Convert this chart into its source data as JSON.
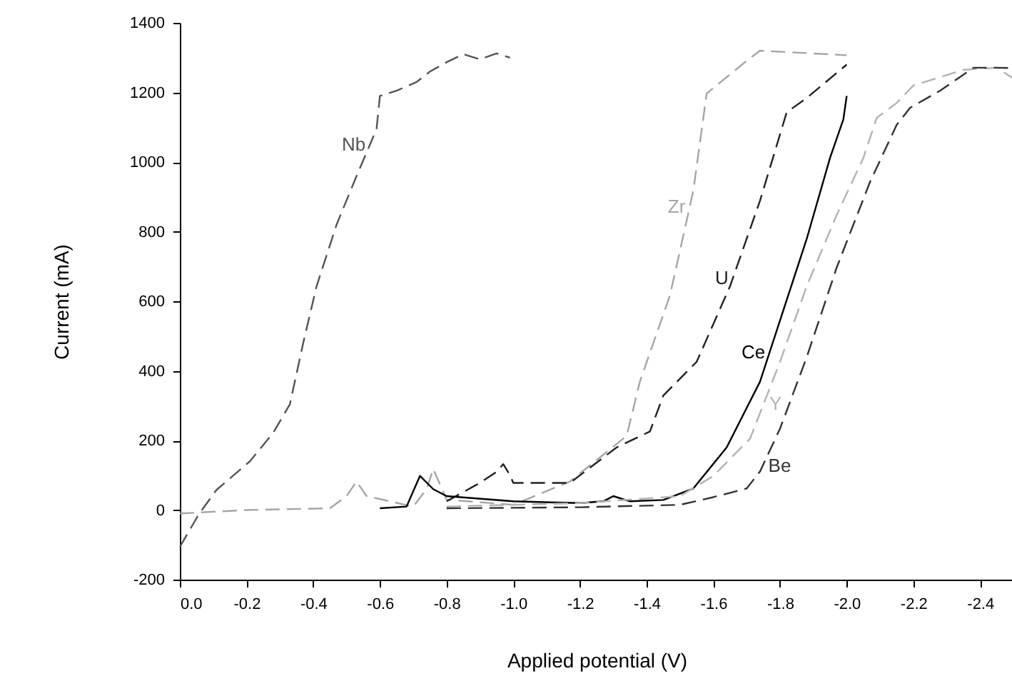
{
  "chart_data": {
    "type": "line",
    "xlabel": "Applied potential  (V)",
    "ylabel": "Current  (mA)",
    "xlim": [
      0,
      -2.5
    ],
    "ylim": [
      -200,
      1400
    ],
    "xticks": [
      {
        "value": 0,
        "label": "0.0"
      },
      -0.2,
      -0.4,
      -0.6,
      -0.8,
      {
        "value": -1,
        "label": "-1.0"
      },
      -1.2,
      -1.4,
      -1.6,
      -1.8,
      {
        "value": -2,
        "label": "-2.0"
      },
      -2.2,
      -2.4
    ],
    "yticks": [
      -200,
      0,
      200,
      400,
      600,
      800,
      {
        "value": 1000,
        "label": "1000"
      },
      {
        "value": 1200,
        "label": "1200"
      },
      {
        "value": 1400,
        "label": "1400"
      }
    ],
    "grid": false,
    "legend": false,
    "marker": "none",
    "series": [
      {
        "name": "Nb",
        "color": "#555555",
        "line_style": "dashed",
        "x": [
          0,
          -0.057,
          -0.11,
          -0.21,
          -0.28,
          -0.33,
          -0.37,
          -0.41,
          -0.47,
          -0.53,
          -0.59,
          -0.6,
          -0.65,
          -0.71,
          -0.75,
          -0.8,
          -0.85,
          -0.9,
          -0.95,
          -0.99
        ],
        "values": [
          -106,
          -12,
          58,
          140,
          222,
          304,
          480,
          643,
          820,
          960,
          1095,
          1190,
          1205,
          1230,
          1260,
          1287,
          1310,
          1295,
          1312,
          1300
        ]
      },
      {
        "name": "Zr",
        "color": "#a6a6a6",
        "line_style": "dashed",
        "x": [
          0,
          -0.2,
          -0.45,
          -0.5,
          -0.53,
          -0.56,
          -0.7,
          -0.74,
          -0.76,
          -0.8,
          -1.0,
          -1.17,
          -1.34,
          -1.38,
          -1.47,
          -1.54,
          -1.58,
          -1.7,
          -1.74,
          -2.0
        ],
        "values": [
          -10,
          0,
          5,
          40,
          82,
          40,
          10,
          60,
          118,
          30,
          15,
          82,
          213,
          370,
          617,
          918,
          1197,
          1291,
          1320,
          1307
        ]
      },
      {
        "name": "U",
        "color": "#222222",
        "line_style": "dashed",
        "x": [
          -0.8,
          -0.9,
          -0.95,
          -0.97,
          -0.99,
          -1.0,
          -1.17,
          -1.31,
          -1.41,
          -1.45,
          -1.55,
          -1.65,
          -1.74,
          -1.82,
          -1.88,
          -2.0
        ],
        "values": [
          25,
          78,
          110,
          132,
          100,
          78,
          78,
          180,
          226,
          329,
          426,
          643,
          889,
          1143,
          1184,
          1280
        ]
      },
      {
        "name": "Ce",
        "color": "#000000",
        "line_style": "solid",
        "x": [
          -0.6,
          -0.68,
          -0.72,
          -0.76,
          -0.8,
          -1.0,
          -1.2,
          -1.27,
          -1.3,
          -1.35,
          -1.45,
          -1.54,
          -1.64,
          -1.74,
          -1.81,
          -1.88,
          -1.95,
          -1.99,
          -2.0
        ],
        "values": [
          5,
          10,
          98,
          60,
          40,
          25,
          20,
          25,
          40,
          25,
          29,
          62,
          180,
          369,
          574,
          779,
          1012,
          1123,
          1190
        ]
      },
      {
        "name": "Y",
        "color": "#b3b3b3",
        "line_style": "dashed",
        "x": [
          -0.8,
          -1.2,
          -1.5,
          -1.6,
          -1.71,
          -1.8,
          -1.88,
          -1.97,
          -2.05,
          -2.09,
          -2.15,
          -2.2,
          -2.3,
          -2.35,
          -2.45,
          -2.5
        ],
        "values": [
          10,
          20,
          40,
          98,
          205,
          426,
          643,
          848,
          1012,
          1127,
          1170,
          1220,
          1250,
          1265,
          1271,
          1240
        ]
      },
      {
        "name": "Be",
        "color": "#333333",
        "line_style": "dashed",
        "x": [
          -0.8,
          -1.2,
          -1.5,
          -1.6,
          -1.7,
          -1.74,
          -1.8,
          -1.88,
          -1.97,
          -2.07,
          -2.15,
          -2.19,
          -2.28,
          -2.38,
          -2.45,
          -2.5
        ],
        "values": [
          5,
          8,
          15,
          37,
          62,
          111,
          234,
          439,
          697,
          943,
          1107,
          1156,
          1205,
          1271,
          1271,
          1270
        ]
      }
    ]
  }
}
